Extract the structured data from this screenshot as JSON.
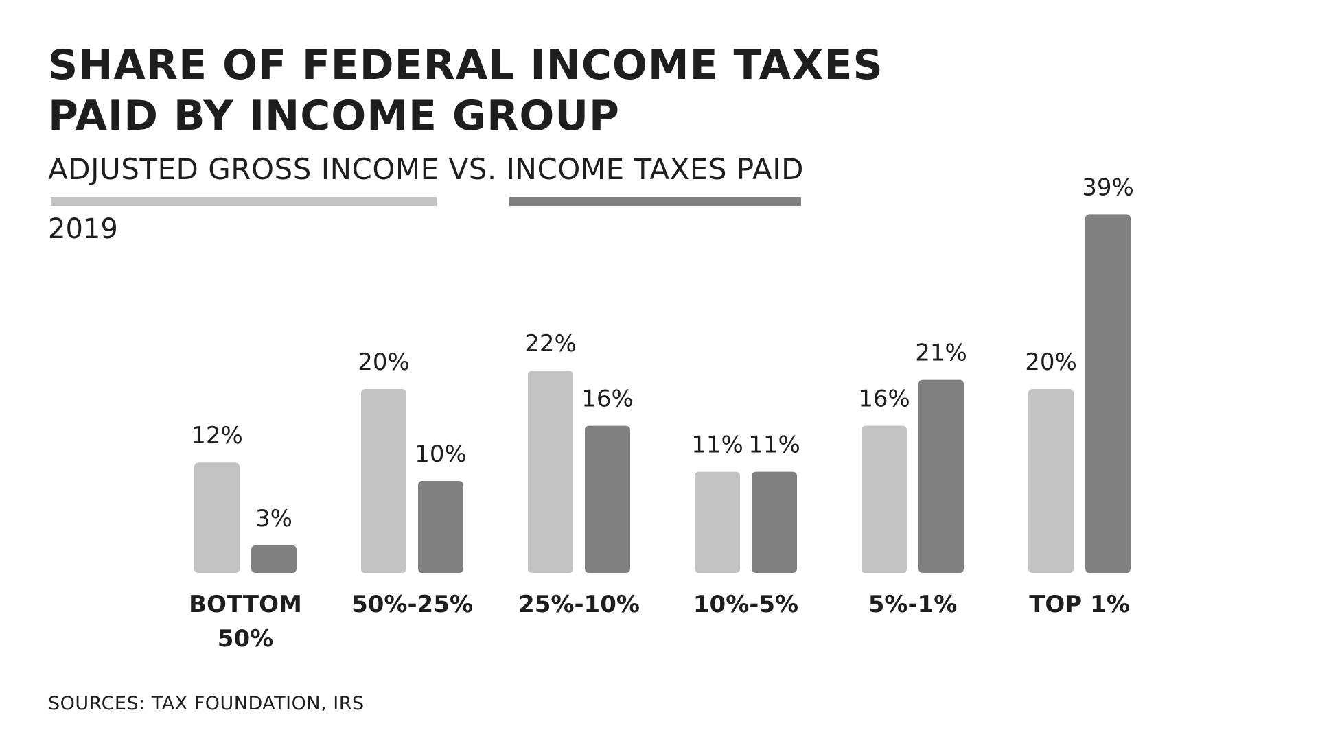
{
  "title_lines": [
    "SHARE OF FEDERAL INCOME TAXES",
    "PAID BY INCOME GROUP"
  ],
  "subtitle": {
    "series1_label": "ADJUSTED GROSS INCOME",
    "separator": "VS.",
    "series2_label": "INCOME TAXES PAID"
  },
  "year": "2019",
  "source": "SOURCES: TAX FOUNDATION, IRS",
  "colors": {
    "series1": "#c4c3c4",
    "series2": "#808080",
    "text": "#1e1e1e"
  },
  "chart_data": {
    "type": "bar",
    "title": "SHARE OF FEDERAL INCOME TAXES PAID BY INCOME GROUP",
    "subtitle": "ADJUSTED GROSS INCOME VS. INCOME TAXES PAID",
    "categories": [
      "BOTTOM 50%",
      "50%-25%",
      "25%-10%",
      "10%-5%",
      "5%-1%",
      "TOP 1%"
    ],
    "series": [
      {
        "name": "ADJUSTED GROSS INCOME",
        "values": [
          12,
          20,
          22,
          11,
          16,
          20
        ],
        "labels": [
          "12%",
          "20%",
          "22%",
          "11%",
          "16%",
          "20%"
        ]
      },
      {
        "name": "INCOME TAXES PAID",
        "values": [
          3,
          10,
          16,
          11,
          21,
          39
        ],
        "labels": [
          "3%",
          "10%",
          "16%",
          "11%",
          "21%",
          "39%"
        ]
      }
    ],
    "xlabel": "",
    "ylabel": "",
    "ylim": [
      0,
      40
    ],
    "grid": false,
    "legend": "subtitle"
  }
}
